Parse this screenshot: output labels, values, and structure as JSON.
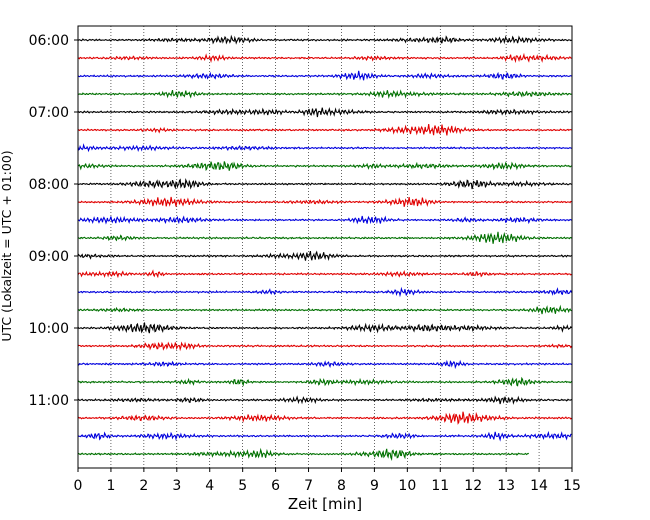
{
  "chart_data": {
    "type": "line",
    "title": "",
    "xlabel": "Zeit  [min]",
    "ylabel": "UTC (Lokalzeit = UTC + 01:00)",
    "xlim": [
      0,
      15
    ],
    "x_ticks": [
      "0",
      "1",
      "2",
      "3",
      "4",
      "5",
      "6",
      "7",
      "8",
      "9",
      "10",
      "11",
      "12",
      "13",
      "14",
      "15"
    ],
    "y_ticks": [
      "06:00",
      "07:00",
      "08:00",
      "09:00",
      "10:00",
      "11:00"
    ],
    "grid": "vertical dotted",
    "trace_interval_minutes": 15,
    "trace_start": "06:00",
    "trace_colors": [
      "#000000",
      "#e00000",
      "#0000dd",
      "#007000"
    ],
    "last_trace_end_minute": 13.7,
    "traces": [
      {
        "start": "06:00",
        "color": "#000000"
      },
      {
        "start": "06:15",
        "color": "#e00000"
      },
      {
        "start": "06:30",
        "color": "#0000dd"
      },
      {
        "start": "06:45",
        "color": "#007000"
      },
      {
        "start": "07:00",
        "color": "#000000"
      },
      {
        "start": "07:15",
        "color": "#e00000"
      },
      {
        "start": "07:30",
        "color": "#0000dd"
      },
      {
        "start": "07:45",
        "color": "#007000"
      },
      {
        "start": "08:00",
        "color": "#000000"
      },
      {
        "start": "08:15",
        "color": "#e00000"
      },
      {
        "start": "08:30",
        "color": "#0000dd"
      },
      {
        "start": "08:45",
        "color": "#007000"
      },
      {
        "start": "09:00",
        "color": "#000000"
      },
      {
        "start": "09:15",
        "color": "#e00000"
      },
      {
        "start": "09:30",
        "color": "#0000dd"
      },
      {
        "start": "09:45",
        "color": "#007000"
      },
      {
        "start": "10:00",
        "color": "#000000"
      },
      {
        "start": "10:15",
        "color": "#e00000"
      },
      {
        "start": "10:30",
        "color": "#0000dd"
      },
      {
        "start": "10:45",
        "color": "#007000"
      },
      {
        "start": "11:00",
        "color": "#000000"
      },
      {
        "start": "11:15",
        "color": "#e00000"
      },
      {
        "start": "11:30",
        "color": "#0000dd"
      },
      {
        "start": "11:45",
        "color": "#007000"
      }
    ]
  }
}
